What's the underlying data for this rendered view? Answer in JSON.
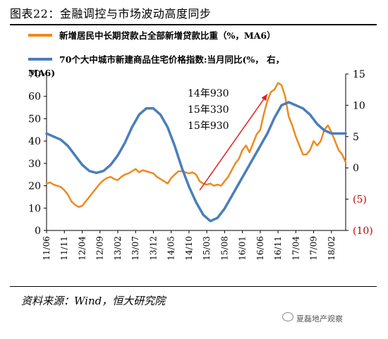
{
  "header": {
    "title": "图表22：金融调控与市场波动高度同步"
  },
  "legend": {
    "series1": "新增居民中长期贷款占全部新增贷款比重（%，MA6）",
    "series2_line1": "70个大中城市新建商品住宅价格指数:当月同比(%，  右，",
    "series2_line2": "MA6)"
  },
  "annotation": {
    "lines": [
      "14年930",
      "15年330",
      "15年930"
    ]
  },
  "footer": {
    "source": "资料来源：Wind，恒大研究院",
    "watermark": "夏磊地产观察"
  },
  "colors": {
    "orange": "#ED8A1F",
    "blue": "#4A7EBB",
    "arrow": "#E02020",
    "right_axis_negative": "#C00000"
  },
  "chart_data": {
    "type": "line",
    "x": [
      "11/06",
      "11/11",
      "12/04",
      "12/09",
      "13/02",
      "13/07",
      "13/12",
      "14/05",
      "14/10",
      "15/03",
      "15/08",
      "16/01",
      "16/06",
      "16/11",
      "17/04",
      "17/09",
      "18/02"
    ],
    "x_ticks": [
      "11/06",
      "11/11",
      "12/04",
      "12/09",
      "13/02",
      "13/07",
      "13/12",
      "14/05",
      "14/10",
      "15/03",
      "15/08",
      "16/01",
      "16/06",
      "16/11",
      "17/04",
      "17/09",
      "18/02"
    ],
    "left_axis": {
      "ylim": [
        0,
        70
      ],
      "ticks": [
        "0",
        "10",
        "20",
        "30",
        "40",
        "50",
        "60",
        "70"
      ]
    },
    "right_axis": {
      "ylim": [
        -10,
        15
      ],
      "ticks": [
        "(10)",
        "(5)",
        "0",
        "5",
        "10",
        "15"
      ],
      "tick_values": [
        -10,
        -5,
        0,
        5,
        10,
        15
      ]
    },
    "series": [
      {
        "name": "新增居民中长期贷款占全部新增贷款比重（%，MA6）",
        "axis": "left",
        "color": "#ED8A1F",
        "points": [
          [
            "2011-06",
            21
          ],
          [
            "2011-07",
            21.5
          ],
          [
            "2011-08",
            20.5
          ],
          [
            "2011-09",
            20
          ],
          [
            "2011-10",
            19.5
          ],
          [
            "2011-11",
            18
          ],
          [
            "2011-12",
            16
          ],
          [
            "2012-01",
            13
          ],
          [
            "2012-02",
            11.5
          ],
          [
            "2012-03",
            10.5
          ],
          [
            "2012-04",
            11
          ],
          [
            "2012-05",
            13
          ],
          [
            "2012-06",
            15
          ],
          [
            "2012-07",
            17
          ],
          [
            "2012-08",
            19
          ],
          [
            "2012-09",
            21
          ],
          [
            "2012-10",
            22.5
          ],
          [
            "2012-11",
            23.5
          ],
          [
            "2012-12",
            24
          ],
          [
            "2013-01",
            23
          ],
          [
            "2013-02",
            22.5
          ],
          [
            "2013-03",
            24
          ],
          [
            "2013-04",
            25
          ],
          [
            "2013-05",
            25.5
          ],
          [
            "2013-06",
            26.5
          ],
          [
            "2013-07",
            27.5
          ],
          [
            "2013-08",
            26
          ],
          [
            "2013-09",
            27
          ],
          [
            "2013-10",
            26.5
          ],
          [
            "2013-11",
            26
          ],
          [
            "2013-12",
            25.5
          ],
          [
            "2014-01",
            24
          ],
          [
            "2014-02",
            23
          ],
          [
            "2014-03",
            22
          ],
          [
            "2014-04",
            21
          ],
          [
            "2014-05",
            23.5
          ],
          [
            "2014-06",
            25
          ],
          [
            "2014-07",
            26.5
          ],
          [
            "2014-08",
            26.5
          ],
          [
            "2014-09",
            26
          ],
          [
            "2014-10",
            25.5
          ],
          [
            "2014-11",
            26
          ],
          [
            "2014-12",
            25
          ],
          [
            "2015-01",
            22
          ],
          [
            "2015-02",
            21
          ],
          [
            "2015-03",
            20.5
          ],
          [
            "2015-04",
            21
          ],
          [
            "2015-05",
            20
          ],
          [
            "2015-06",
            20.5
          ],
          [
            "2015-07",
            20
          ],
          [
            "2015-08",
            22
          ],
          [
            "2015-09",
            24
          ],
          [
            "2015-10",
            27
          ],
          [
            "2015-11",
            30
          ],
          [
            "2015-12",
            32
          ],
          [
            "2016-01",
            36
          ],
          [
            "2016-02",
            38
          ],
          [
            "2016-03",
            35
          ],
          [
            "2016-04",
            39
          ],
          [
            "2016-05",
            43
          ],
          [
            "2016-06",
            45
          ],
          [
            "2016-07",
            52
          ],
          [
            "2016-08",
            58
          ],
          [
            "2016-09",
            62
          ],
          [
            "2016-10",
            63
          ],
          [
            "2016-11",
            66
          ],
          [
            "2016-12",
            65
          ],
          [
            "2017-01",
            60
          ],
          [
            "2017-02",
            51
          ],
          [
            "2017-03",
            47
          ],
          [
            "2017-04",
            42
          ],
          [
            "2017-05",
            38
          ],
          [
            "2017-06",
            34
          ],
          [
            "2017-07",
            34
          ],
          [
            "2017-08",
            36
          ],
          [
            "2017-09",
            40
          ],
          [
            "2017-10",
            38
          ],
          [
            "2017-11",
            40
          ],
          [
            "2017-12",
            45
          ],
          [
            "2018-01",
            47
          ],
          [
            "2018-02",
            44
          ],
          [
            "2018-03",
            40
          ],
          [
            "2018-04",
            36
          ],
          [
            "2018-05",
            34
          ],
          [
            "2018-06",
            30.5
          ]
        ]
      },
      {
        "name": "70个大中城市新建商品住宅价格指数:当月同比(%，右，MA6)",
        "axis": "right",
        "color": "#4A7EBB",
        "points": [
          [
            "2011-06",
            5.5
          ],
          [
            "2011-08",
            5
          ],
          [
            "2011-10",
            4.5
          ],
          [
            "2011-12",
            3.5
          ],
          [
            "2012-02",
            2
          ],
          [
            "2012-04",
            0.5
          ],
          [
            "2012-06",
            -0.5
          ],
          [
            "2012-08",
            -0.8
          ],
          [
            "2012-10",
            -0.5
          ],
          [
            "2012-12",
            0.5
          ],
          [
            "2013-02",
            2
          ],
          [
            "2013-04",
            4
          ],
          [
            "2013-06",
            6.5
          ],
          [
            "2013-08",
            8.5
          ],
          [
            "2013-10",
            9.5
          ],
          [
            "2013-12",
            9.5
          ],
          [
            "2014-02",
            8.5
          ],
          [
            "2014-04",
            6.5
          ],
          [
            "2014-06",
            3.5
          ],
          [
            "2014-08",
            0
          ],
          [
            "2014-10",
            -3
          ],
          [
            "2014-12",
            -5.5
          ],
          [
            "2015-02",
            -7.5
          ],
          [
            "2015-04",
            -8.5
          ],
          [
            "2015-06",
            -8
          ],
          [
            "2015-08",
            -6.5
          ],
          [
            "2015-10",
            -4.5
          ],
          [
            "2015-12",
            -2.5
          ],
          [
            "2016-02",
            -0.5
          ],
          [
            "2016-04",
            1.5
          ],
          [
            "2016-06",
            3.5
          ],
          [
            "2016-08",
            5.5
          ],
          [
            "2016-10",
            8
          ],
          [
            "2016-12",
            10
          ],
          [
            "2017-02",
            10.5
          ],
          [
            "2017-04",
            10
          ],
          [
            "2017-06",
            9.5
          ],
          [
            "2017-08",
            8.5
          ],
          [
            "2017-10",
            7
          ],
          [
            "2017-12",
            6
          ],
          [
            "2018-02",
            5.5
          ],
          [
            "2018-04",
            5.5
          ],
          [
            "2018-06",
            5.5
          ]
        ]
      }
    ],
    "annotation_arrow": {
      "from": [
        "2015-01",
        18
      ],
      "to": [
        "2016-08",
        61
      ]
    }
  }
}
